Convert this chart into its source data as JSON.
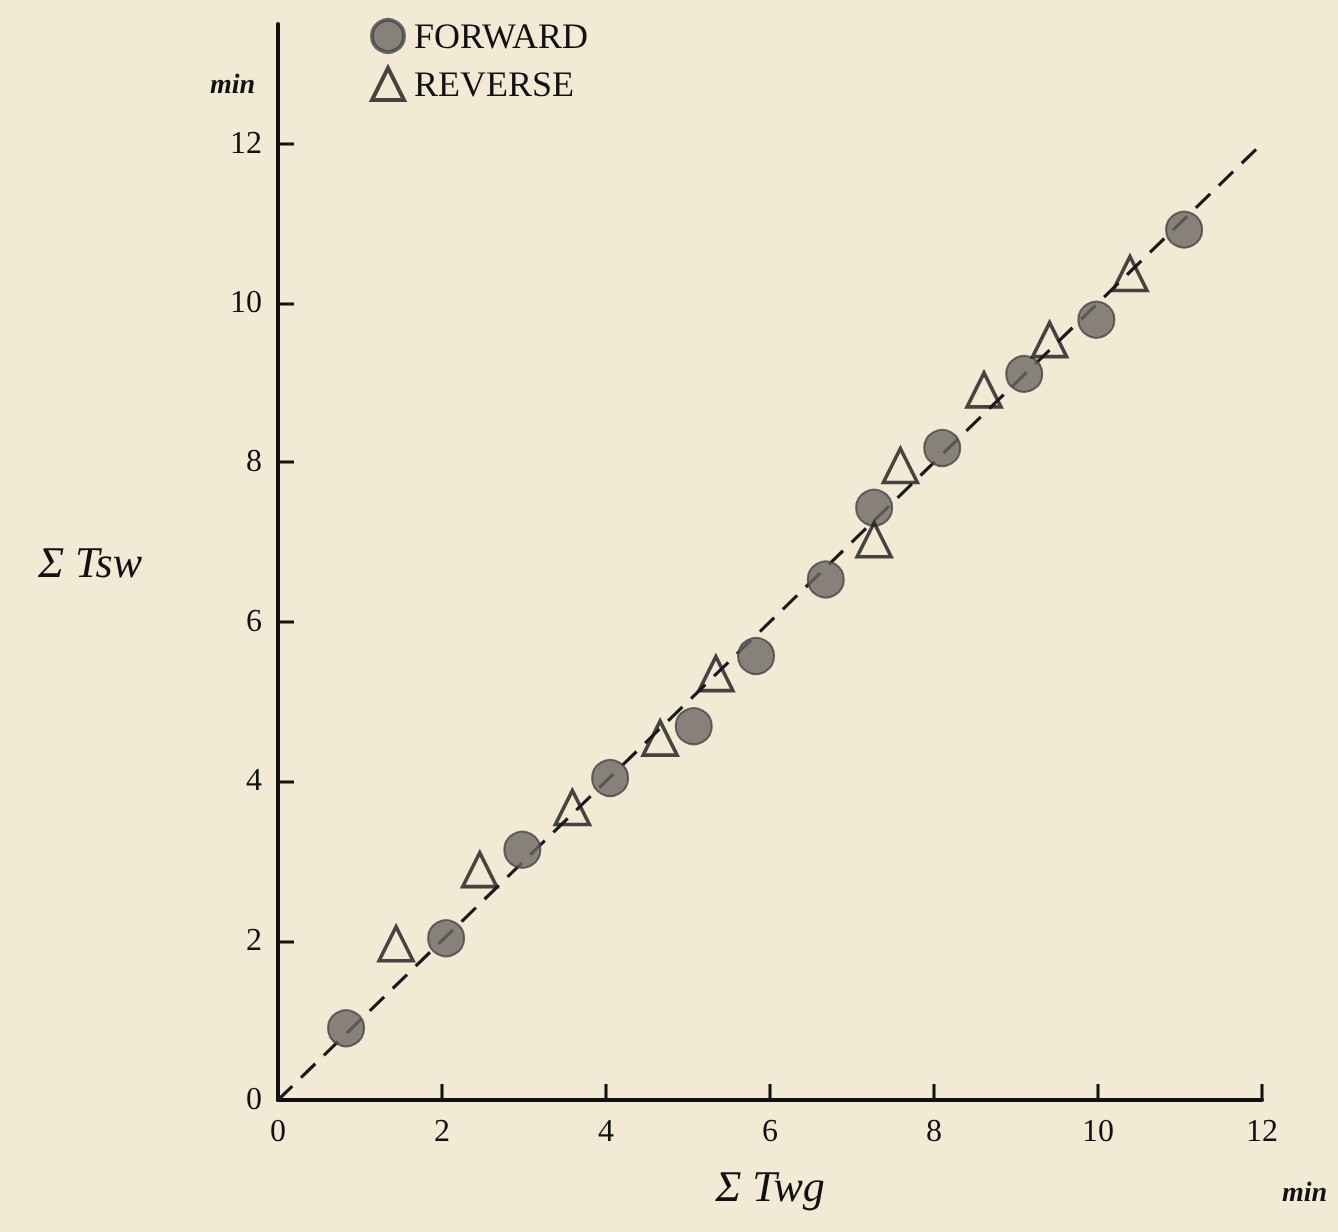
{
  "chart_data": {
    "type": "scatter",
    "xlabel": "Σ Twg",
    "ylabel": "Σ Tsw",
    "annotations": [
      "min",
      "min"
    ],
    "xlim": [
      0,
      12
    ],
    "ylim": [
      0,
      13.5
    ],
    "xticks": [
      0,
      2,
      4,
      6,
      8,
      10,
      12
    ],
    "yticks": [
      0,
      2,
      4,
      6,
      8,
      10,
      12
    ],
    "grid": false,
    "legend": "top left",
    "series": [
      {
        "name": "FORWARD",
        "color": "#6b6763",
        "marker": "circle",
        "x": [
          0.83,
          2.05,
          2.98,
          4.05,
          5.07,
          5.83,
          6.68,
          7.27,
          8.1,
          9.1,
          9.98,
          11.05
        ],
        "values": [
          0.9,
          2.03,
          3.14,
          4.04,
          4.69,
          5.57,
          6.53,
          7.43,
          8.18,
          9.11,
          9.79,
          10.92
        ]
      },
      {
        "name": "REVERSE",
        "color": "#1a1a1a",
        "marker": "triangle",
        "x": [
          1.44,
          2.46,
          3.59,
          4.66,
          5.34,
          7.27,
          7.59,
          8.61,
          9.41,
          10.39
        ],
        "values": [
          1.96,
          2.89,
          3.67,
          4.54,
          5.35,
          7.03,
          7.96,
          8.91,
          9.54,
          10.37
        ]
      },
      {
        "type": "line",
        "color": "#1a1a1a",
        "line_style": "dashed",
        "marker": "none",
        "x": [
          0,
          12
        ],
        "values": [
          0,
          12
        ]
      }
    ]
  }
}
